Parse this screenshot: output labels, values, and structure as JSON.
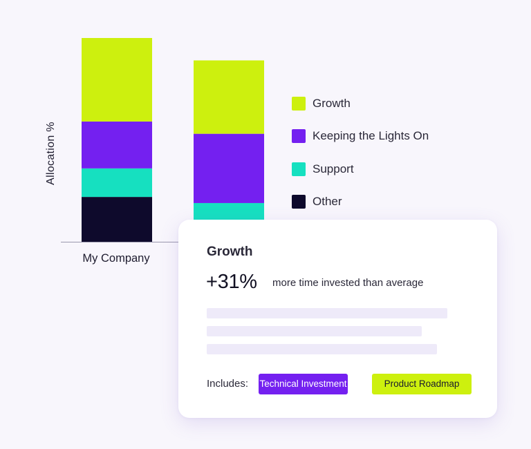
{
  "chart_data": {
    "type": "bar",
    "stacked": true,
    "categories": [
      "My Company",
      ""
    ],
    "tick_labels_visible": [
      "My Company"
    ],
    "series": [
      {
        "name": "Other",
        "color": "#0e0a2c",
        "values": [
          22,
          null
        ]
      },
      {
        "name": "Support",
        "color": "#16e0c0",
        "values": [
          14,
          19
        ]
      },
      {
        "name": "Keeping the Lights On",
        "color": "#7420f0",
        "values": [
          23,
          34
        ]
      },
      {
        "name": "Growth",
        "color": "#cdf00e",
        "values": [
          41,
          36
        ]
      }
    ],
    "ylabel": "Allocation %",
    "ylim": [
      0,
      100
    ],
    "grid": false,
    "legend_position": "right",
    "legend_order": [
      "Growth",
      "Keeping the Lights On",
      "Support",
      "Other"
    ]
  },
  "legend": {
    "items": [
      {
        "label": "Growth",
        "color": "#cdf00e"
      },
      {
        "label": "Keeping the Lights On",
        "color": "#7420f0"
      },
      {
        "label": "Support",
        "color": "#16e0c0"
      },
      {
        "label": "Other",
        "color": "#0e0a2c"
      }
    ]
  },
  "card": {
    "title": "Growth",
    "stat": "+31%",
    "description": "more time invested than average",
    "includes_label": "Includes:",
    "tags": [
      {
        "label": "Technical Investment",
        "color": "#7420f0"
      },
      {
        "label": "Product Roadmap",
        "color": "#cdf00e"
      }
    ]
  }
}
